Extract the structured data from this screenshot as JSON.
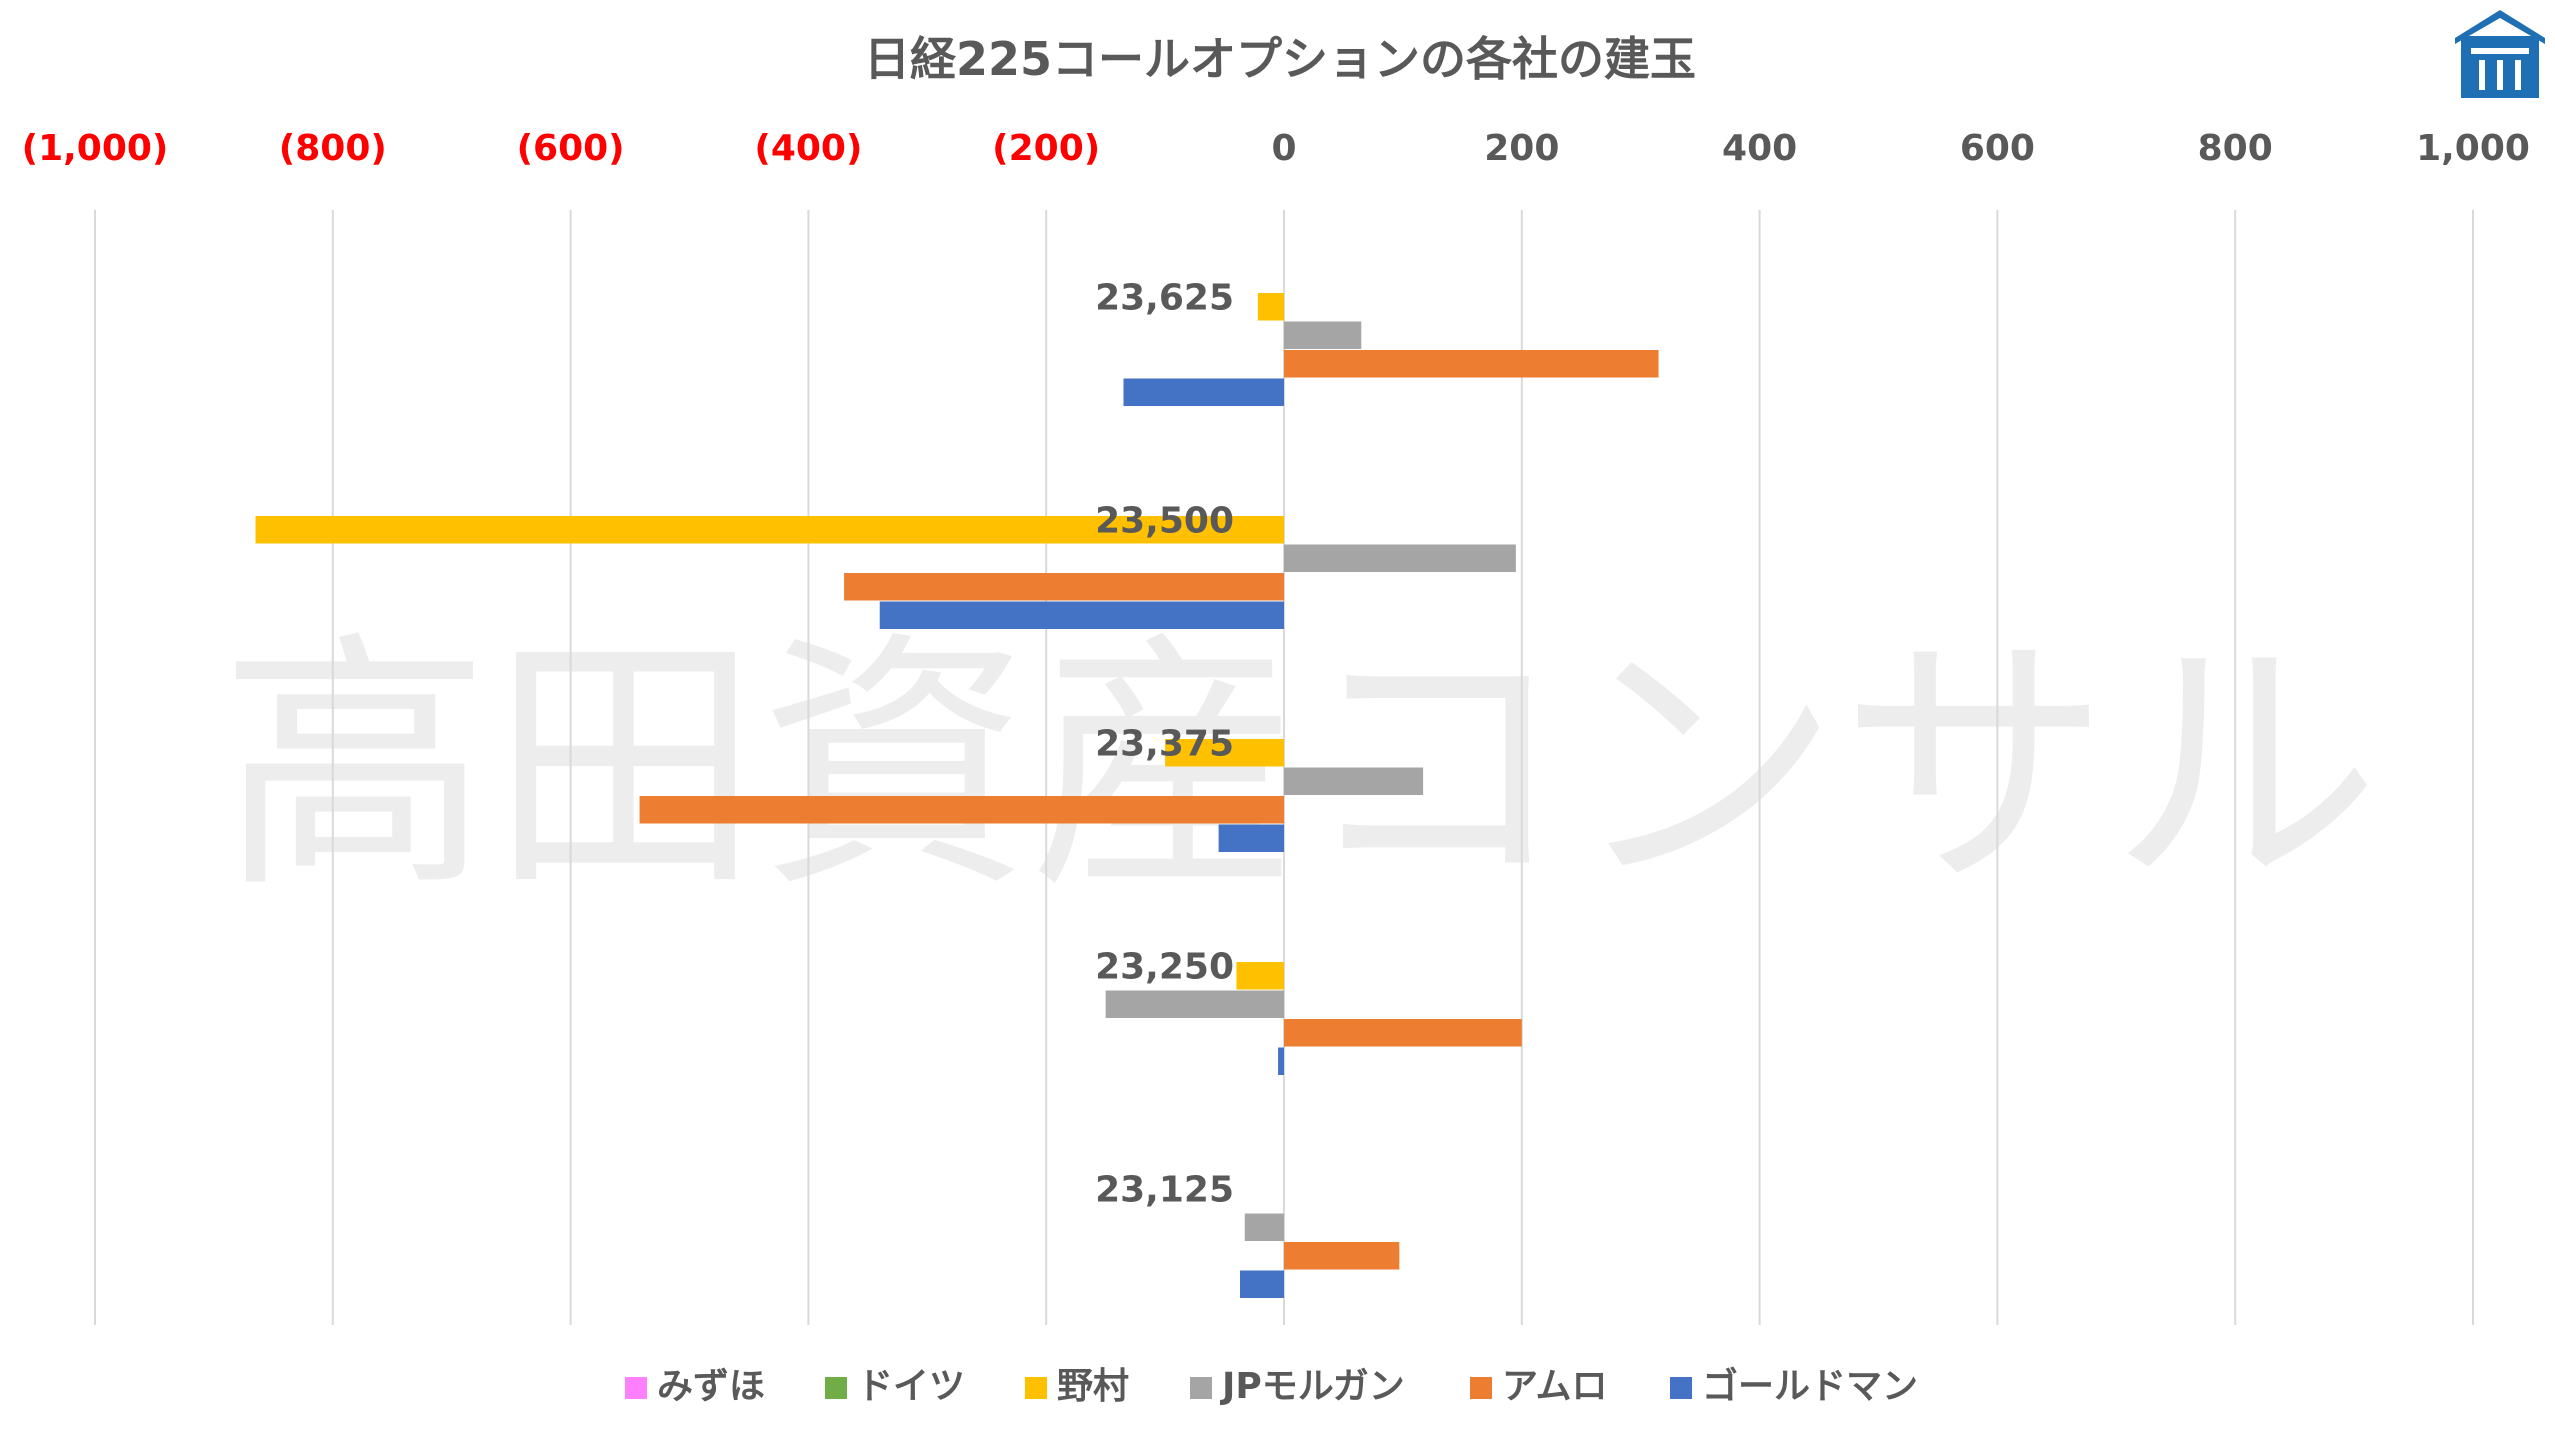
{
  "chart_data": {
    "type": "bar",
    "orientation": "horizontal",
    "title": "日経225コールオプションの各社の建玉",
    "watermark": "高田資産コンサル",
    "x_ticks": [
      "(1,000)",
      "(800)",
      "(600)",
      "(400)",
      "(200)",
      "0",
      "200",
      "400",
      "600",
      "800",
      "1,000"
    ],
    "xlim": [
      -1000,
      1000
    ],
    "grid": true,
    "legend_position": "bottom",
    "categories": [
      "23,625",
      "23,500",
      "23,375",
      "23,250",
      "23,125"
    ],
    "series": [
      {
        "name": "みずほ",
        "color": "#ff80ff",
        "values": [
          0,
          0,
          0,
          0,
          0
        ]
      },
      {
        "name": "ドイツ",
        "color": "#70ad47",
        "values": [
          0,
          0,
          0,
          0,
          0
        ]
      },
      {
        "name": "野村",
        "color": "#ffc000",
        "values": [
          -22,
          -865,
          -100,
          -40,
          0
        ]
      },
      {
        "name": "JPモルガン",
        "color": "#a5a5a5",
        "values": [
          65,
          195,
          117,
          -150,
          -33
        ]
      },
      {
        "name": "アムロ",
        "color": "#ed7d31",
        "values": [
          315,
          -370,
          -542,
          200,
          97
        ]
      },
      {
        "name": "ゴールドマン",
        "color": "#4472c4",
        "values": [
          -135,
          -340,
          -55,
          -5,
          -37
        ]
      }
    ],
    "colors": {
      "negative_tick": "#ff0000",
      "positive_tick": "#595959",
      "gridline": "#d9d9d9"
    }
  }
}
